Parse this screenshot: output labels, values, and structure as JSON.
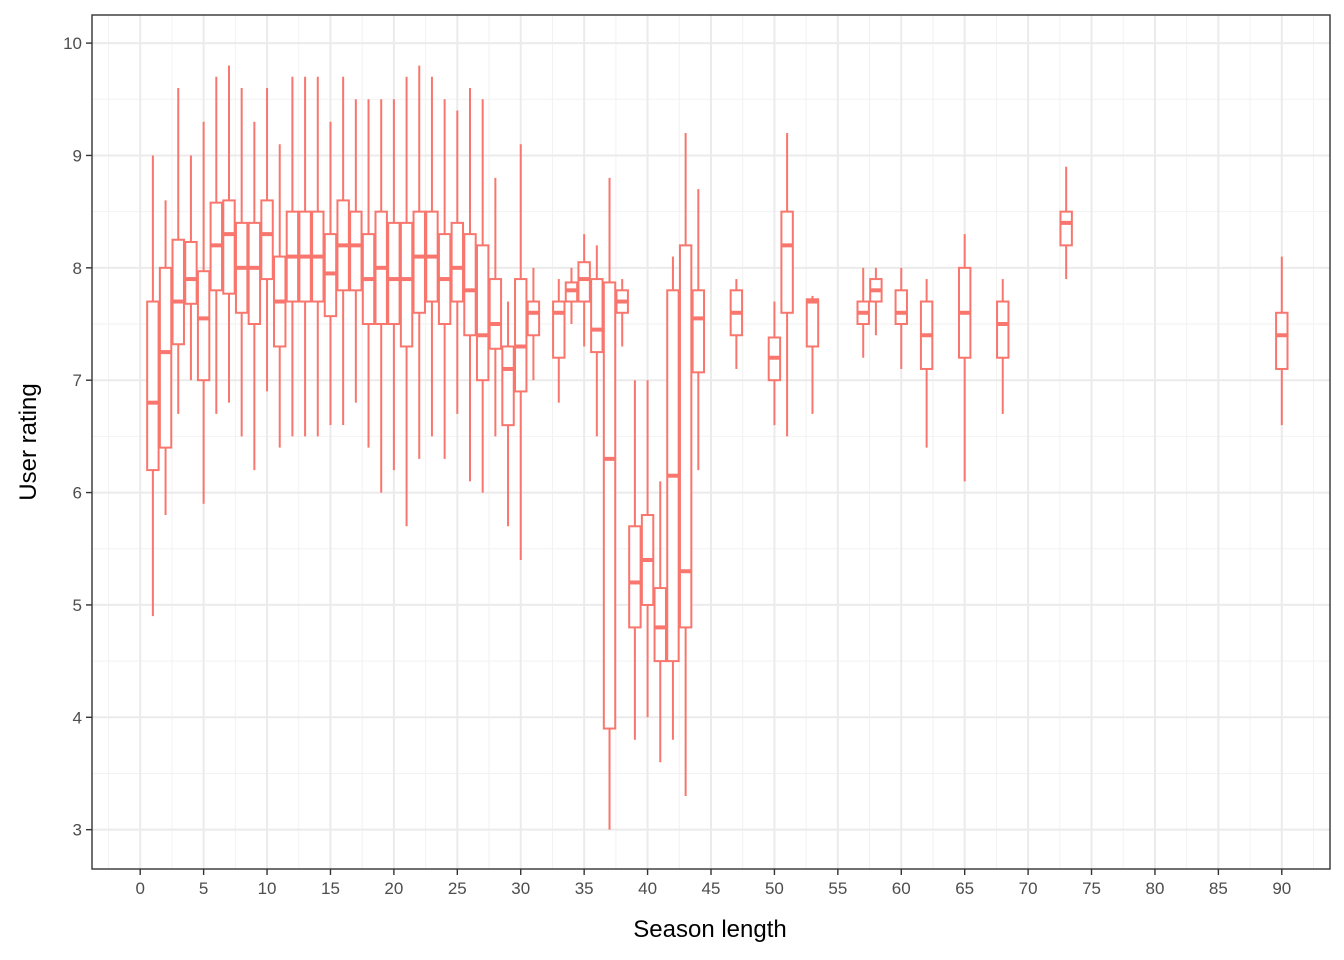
{
  "chart_data": {
    "type": "boxplot",
    "xlabel": "Season length",
    "ylabel": "User rating",
    "xlim": [
      -3.8,
      93.8
    ],
    "ylim": [
      2.65,
      10.25
    ],
    "x_ticks": [
      0,
      5,
      10,
      15,
      20,
      25,
      30,
      35,
      40,
      45,
      50,
      55,
      60,
      65,
      70,
      75,
      80,
      85,
      90
    ],
    "y_ticks": [
      3,
      4,
      5,
      6,
      7,
      8,
      9,
      10
    ],
    "grid": true,
    "legend": "none",
    "color": "#F8766D",
    "boxes": [
      {
        "x": 1,
        "min": 4.9,
        "q1": 6.2,
        "median": 6.8,
        "q3": 7.7,
        "max": 9.0
      },
      {
        "x": 2,
        "min": 5.8,
        "q1": 6.4,
        "median": 7.25,
        "q3": 8.0,
        "max": 8.6
      },
      {
        "x": 3,
        "min": 6.7,
        "q1": 7.32,
        "median": 7.7,
        "q3": 8.25,
        "max": 9.6
      },
      {
        "x": 4,
        "min": 7.0,
        "q1": 7.68,
        "median": 7.9,
        "q3": 8.23,
        "max": 9.0
      },
      {
        "x": 5,
        "min": 5.9,
        "q1": 7.0,
        "median": 7.55,
        "q3": 7.97,
        "max": 9.3
      },
      {
        "x": 6,
        "min": 6.7,
        "q1": 7.8,
        "median": 8.2,
        "q3": 8.58,
        "max": 9.7
      },
      {
        "x": 7,
        "min": 6.8,
        "q1": 7.77,
        "median": 8.3,
        "q3": 8.6,
        "max": 9.8
      },
      {
        "x": 8,
        "min": 6.5,
        "q1": 7.6,
        "median": 8.0,
        "q3": 8.4,
        "max": 9.6
      },
      {
        "x": 9,
        "min": 6.2,
        "q1": 7.5,
        "median": 8.0,
        "q3": 8.4,
        "max": 9.3
      },
      {
        "x": 10,
        "min": 6.9,
        "q1": 7.9,
        "median": 8.3,
        "q3": 8.6,
        "max": 9.6
      },
      {
        "x": 11,
        "min": 6.4,
        "q1": 7.3,
        "median": 7.7,
        "q3": 8.1,
        "max": 9.1
      },
      {
        "x": 12,
        "min": 6.5,
        "q1": 7.7,
        "median": 8.1,
        "q3": 8.5,
        "max": 9.7
      },
      {
        "x": 13,
        "min": 6.5,
        "q1": 7.7,
        "median": 8.1,
        "q3": 8.5,
        "max": 9.7
      },
      {
        "x": 14,
        "min": 6.5,
        "q1": 7.7,
        "median": 8.1,
        "q3": 8.5,
        "max": 9.7
      },
      {
        "x": 15,
        "min": 6.6,
        "q1": 7.57,
        "median": 7.95,
        "q3": 8.3,
        "max": 9.3
      },
      {
        "x": 16,
        "min": 6.6,
        "q1": 7.8,
        "median": 8.2,
        "q3": 8.6,
        "max": 9.7
      },
      {
        "x": 17,
        "min": 6.8,
        "q1": 7.8,
        "median": 8.2,
        "q3": 8.5,
        "max": 9.5
      },
      {
        "x": 18,
        "min": 6.4,
        "q1": 7.5,
        "median": 7.9,
        "q3": 8.3,
        "max": 9.5
      },
      {
        "x": 19,
        "min": 6.0,
        "q1": 7.5,
        "median": 8.0,
        "q3": 8.5,
        "max": 9.5
      },
      {
        "x": 20,
        "min": 6.2,
        "q1": 7.5,
        "median": 7.9,
        "q3": 8.4,
        "max": 9.5
      },
      {
        "x": 21,
        "min": 5.7,
        "q1": 7.3,
        "median": 7.9,
        "q3": 8.4,
        "max": 9.7
      },
      {
        "x": 22,
        "min": 6.3,
        "q1": 7.6,
        "median": 8.1,
        "q3": 8.5,
        "max": 9.8
      },
      {
        "x": 23,
        "min": 6.5,
        "q1": 7.7,
        "median": 8.1,
        "q3": 8.5,
        "max": 9.7
      },
      {
        "x": 24,
        "min": 6.3,
        "q1": 7.5,
        "median": 7.9,
        "q3": 8.3,
        "max": 9.5
      },
      {
        "x": 25,
        "min": 6.7,
        "q1": 7.7,
        "median": 8.0,
        "q3": 8.4,
        "max": 9.4
      },
      {
        "x": 26,
        "min": 6.1,
        "q1": 7.4,
        "median": 7.8,
        "q3": 8.3,
        "max": 9.6
      },
      {
        "x": 27,
        "min": 6.0,
        "q1": 7.0,
        "median": 7.4,
        "q3": 8.2,
        "max": 9.5
      },
      {
        "x": 28,
        "min": 6.5,
        "q1": 7.28,
        "median": 7.5,
        "q3": 7.9,
        "max": 8.8
      },
      {
        "x": 29,
        "min": 5.7,
        "q1": 6.6,
        "median": 7.1,
        "q3": 7.3,
        "max": 7.7
      },
      {
        "x": 30,
        "min": 5.4,
        "q1": 6.9,
        "median": 7.3,
        "q3": 7.9,
        "max": 9.1
      },
      {
        "x": 31,
        "min": 7.0,
        "q1": 7.4,
        "median": 7.6,
        "q3": 7.7,
        "max": 8.0
      },
      {
        "x": 33,
        "min": 6.8,
        "q1": 7.2,
        "median": 7.6,
        "q3": 7.7,
        "max": 7.9
      },
      {
        "x": 34,
        "min": 7.5,
        "q1": 7.7,
        "median": 7.8,
        "q3": 7.87,
        "max": 8.0
      },
      {
        "x": 35,
        "min": 7.3,
        "q1": 7.7,
        "median": 7.9,
        "q3": 8.05,
        "max": 8.3
      },
      {
        "x": 36,
        "min": 6.5,
        "q1": 7.25,
        "median": 7.45,
        "q3": 7.9,
        "max": 8.2
      },
      {
        "x": 37,
        "min": 3.0,
        "q1": 3.9,
        "median": 6.3,
        "q3": 7.87,
        "max": 8.8
      },
      {
        "x": 38,
        "min": 7.3,
        "q1": 7.6,
        "median": 7.7,
        "q3": 7.8,
        "max": 7.9
      },
      {
        "x": 39,
        "min": 3.8,
        "q1": 4.8,
        "median": 5.2,
        "q3": 5.7,
        "max": 7.0
      },
      {
        "x": 40,
        "min": 4.0,
        "q1": 5.0,
        "median": 5.4,
        "q3": 5.8,
        "max": 7.0
      },
      {
        "x": 41,
        "min": 3.6,
        "q1": 4.5,
        "median": 4.8,
        "q3": 5.15,
        "max": 6.1
      },
      {
        "x": 42,
        "min": 3.8,
        "q1": 4.5,
        "median": 6.15,
        "q3": 7.8,
        "max": 8.1
      },
      {
        "x": 43,
        "min": 3.3,
        "q1": 4.8,
        "median": 5.3,
        "q3": 8.2,
        "max": 9.2
      },
      {
        "x": 44,
        "min": 6.2,
        "q1": 7.07,
        "median": 7.55,
        "q3": 7.8,
        "max": 8.7
      },
      {
        "x": 47,
        "min": 7.1,
        "q1": 7.4,
        "median": 7.6,
        "q3": 7.8,
        "max": 7.9
      },
      {
        "x": 50,
        "min": 6.6,
        "q1": 7.0,
        "median": 7.2,
        "q3": 7.38,
        "max": 7.7
      },
      {
        "x": 51,
        "min": 6.5,
        "q1": 7.6,
        "median": 8.2,
        "q3": 8.5,
        "max": 9.2
      },
      {
        "x": 53,
        "min": 6.7,
        "q1": 7.3,
        "median": 7.7,
        "q3": 7.72,
        "max": 7.75
      },
      {
        "x": 57,
        "min": 7.2,
        "q1": 7.5,
        "median": 7.6,
        "q3": 7.7,
        "max": 8.0
      },
      {
        "x": 58,
        "min": 7.4,
        "q1": 7.7,
        "median": 7.8,
        "q3": 7.9,
        "max": 8.0
      },
      {
        "x": 60,
        "min": 7.1,
        "q1": 7.5,
        "median": 7.6,
        "q3": 7.8,
        "max": 8.0
      },
      {
        "x": 62,
        "min": 6.4,
        "q1": 7.1,
        "median": 7.4,
        "q3": 7.7,
        "max": 7.9
      },
      {
        "x": 65,
        "min": 6.1,
        "q1": 7.2,
        "median": 7.6,
        "q3": 8.0,
        "max": 8.3
      },
      {
        "x": 68,
        "min": 6.7,
        "q1": 7.2,
        "median": 7.5,
        "q3": 7.7,
        "max": 7.9
      },
      {
        "x": 73,
        "min": 7.9,
        "q1": 8.2,
        "median": 8.4,
        "q3": 8.5,
        "max": 8.9
      },
      {
        "x": 90,
        "min": 6.6,
        "q1": 7.1,
        "median": 7.4,
        "q3": 7.6,
        "max": 8.1
      }
    ]
  }
}
